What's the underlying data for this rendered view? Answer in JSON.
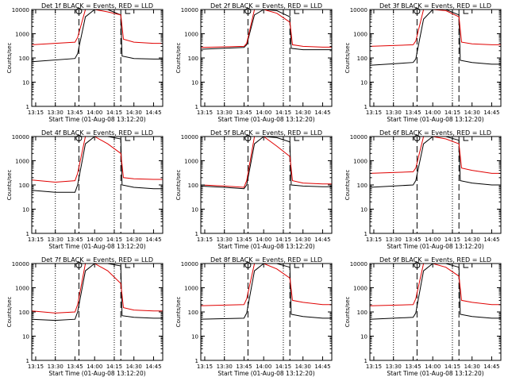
{
  "window": {
    "title": ""
  },
  "colors": {
    "events": "#000000",
    "lld": "#e00000",
    "axes": "#000000"
  },
  "chart_data": [
    {
      "type": "line",
      "title": "Det 1f BLACK = Events, RED = LLD",
      "xlabel": "Start Time (01-Aug-08 13:12:20)",
      "ylabel": "Counts/sec",
      "yscale": "log",
      "ylim": [
        1,
        10000
      ],
      "xlim": [
        "13:12",
        "14:52"
      ],
      "xticks": [
        "13:15",
        "13:30",
        "13:45",
        "14:00",
        "14:15",
        "14:30",
        "14:45"
      ],
      "yticks": [
        "1",
        "10",
        "100",
        "1000",
        "10000"
      ],
      "markers_dotted": [
        "13:30",
        "14:15"
      ],
      "markers_dashed": [
        "13:48",
        "14:20"
      ],
      "series": [
        {
          "name": "Events",
          "color": "#000000",
          "x": [
            "13:12",
            "13:45",
            "13:47",
            "13:53",
            "14:00",
            "14:10",
            "14:20",
            "14:21",
            "14:30",
            "14:45",
            "14:52"
          ],
          "values": [
            70,
            95,
            150,
            5000,
            10000,
            10000,
            6000,
            120,
            95,
            90,
            90
          ]
        },
        {
          "name": "LLD",
          "color": "#e00000",
          "x": [
            "13:12",
            "13:45",
            "13:47",
            "13:53",
            "14:00",
            "14:10",
            "14:20",
            "14:22",
            "14:30",
            "14:45",
            "14:52"
          ],
          "values": [
            350,
            450,
            700,
            10000,
            10000,
            8000,
            6000,
            600,
            450,
            400,
            400
          ]
        }
      ]
    },
    {
      "type": "line",
      "title": "Det 2f BLACK = Events, RED = LLD",
      "xlabel": "Start Time (01-Aug-08 13:12:20)",
      "ylabel": "Counts/sec",
      "yscale": "log",
      "ylim": [
        1,
        10000
      ],
      "xlim": [
        "13:12",
        "14:52"
      ],
      "xticks": [
        "13:15",
        "13:30",
        "13:45",
        "14:00",
        "14:15",
        "14:30",
        "14:45"
      ],
      "yticks": [
        "1",
        "10",
        "100",
        "1000",
        "10000"
      ],
      "markers_dotted": [
        "13:30",
        "14:15"
      ],
      "markers_dashed": [
        "13:48",
        "14:20"
      ],
      "series": [
        {
          "name": "Events",
          "color": "#000000",
          "x": [
            "13:12",
            "13:45",
            "13:47",
            "13:53",
            "14:00",
            "14:10",
            "14:20",
            "14:21",
            "14:30",
            "14:45",
            "14:52"
          ],
          "values": [
            230,
            270,
            350,
            6000,
            10000,
            9000,
            5000,
            250,
            220,
            220,
            220
          ]
        },
        {
          "name": "LLD",
          "color": "#e00000",
          "x": [
            "13:12",
            "13:45",
            "13:47",
            "13:53",
            "14:00",
            "14:10",
            "14:20",
            "14:22",
            "14:30",
            "14:45",
            "14:52"
          ],
          "values": [
            270,
            300,
            400,
            10000,
            10000,
            7000,
            3000,
            350,
            300,
            280,
            280
          ]
        }
      ]
    },
    {
      "type": "line",
      "title": "Det 3f BLACK = Events, RED = LLD",
      "xlabel": "Start Time (01-Aug-08 13:12:20)",
      "ylabel": "Counts/sec",
      "yscale": "log",
      "ylim": [
        1,
        10000
      ],
      "xlim": [
        "13:12",
        "14:52"
      ],
      "xticks": [
        "13:15",
        "13:30",
        "13:45",
        "14:00",
        "14:15",
        "14:30",
        "14:45"
      ],
      "yticks": [
        "1",
        "10",
        "100",
        "1000",
        "10000"
      ],
      "markers_dotted": [
        "13:30",
        "14:15"
      ],
      "markers_dashed": [
        "13:48",
        "14:20"
      ],
      "series": [
        {
          "name": "Events",
          "color": "#000000",
          "x": [
            "13:12",
            "13:45",
            "13:47",
            "13:53",
            "14:00",
            "14:10",
            "14:20",
            "14:21",
            "14:30",
            "14:45",
            "14:52"
          ],
          "values": [
            50,
            65,
            90,
            4000,
            10000,
            10000,
            6000,
            80,
            65,
            55,
            55
          ]
        },
        {
          "name": "LLD",
          "color": "#e00000",
          "x": [
            "13:12",
            "13:45",
            "13:47",
            "13:53",
            "14:00",
            "14:10",
            "14:20",
            "14:22",
            "14:30",
            "14:45",
            "14:52"
          ],
          "values": [
            300,
            350,
            500,
            10000,
            10000,
            9000,
            5000,
            450,
            380,
            350,
            350
          ]
        }
      ]
    },
    {
      "type": "line",
      "title": "Det 4f BLACK = Events, RED = LLD",
      "xlabel": "Start Time (01-Aug-08 13:12:20)",
      "ylabel": "Counts/sec",
      "yscale": "log",
      "ylim": [
        1,
        10000
      ],
      "xlim": [
        "13:12",
        "14:52"
      ],
      "xticks": [
        "13:15",
        "13:30",
        "13:45",
        "14:00",
        "14:15",
        "14:30",
        "14:45"
      ],
      "yticks": [
        "1",
        "10",
        "100",
        "1000",
        "10000"
      ],
      "markers_dotted": [
        "13:30",
        "14:15"
      ],
      "markers_dashed": [
        "13:48",
        "14:20"
      ],
      "series": [
        {
          "name": "Events",
          "color": "#000000",
          "x": [
            "13:12",
            "13:30",
            "13:45",
            "13:47",
            "13:53",
            "14:00",
            "14:10",
            "14:20",
            "14:21",
            "14:30",
            "14:45",
            "14:52"
          ],
          "values": [
            60,
            50,
            50,
            100,
            5000,
            10000,
            10000,
            8000,
            100,
            80,
            70,
            70
          ]
        },
        {
          "name": "LLD",
          "color": "#e00000",
          "x": [
            "13:12",
            "13:30",
            "13:45",
            "13:47",
            "13:53",
            "14:00",
            "14:10",
            "14:20",
            "14:22",
            "14:30",
            "14:45",
            "14:52"
          ],
          "values": [
            160,
            130,
            150,
            300,
            10000,
            10000,
            5000,
            2000,
            200,
            180,
            170,
            170
          ]
        }
      ]
    },
    {
      "type": "line",
      "title": "Det 5f BLACK = Events, RED = LLD",
      "xlabel": "Start Time (01-Aug-08 13:12:20)",
      "ylabel": "Counts/sec",
      "yscale": "log",
      "ylim": [
        1,
        10000
      ],
      "xlim": [
        "13:12",
        "14:52"
      ],
      "xticks": [
        "13:15",
        "13:30",
        "13:45",
        "14:00",
        "14:15",
        "14:30",
        "14:45"
      ],
      "yticks": [
        "1",
        "10",
        "100",
        "1000",
        "10000"
      ],
      "markers_dotted": [
        "13:30",
        "14:15"
      ],
      "markers_dashed": [
        "13:48",
        "14:20"
      ],
      "series": [
        {
          "name": "Events",
          "color": "#000000",
          "x": [
            "13:12",
            "13:30",
            "13:45",
            "13:47",
            "13:53",
            "14:00",
            "14:10",
            "14:20",
            "14:21",
            "14:30",
            "14:45",
            "14:52"
          ],
          "values": [
            90,
            80,
            70,
            100,
            5000,
            10000,
            9000,
            6000,
            100,
            90,
            85,
            85
          ]
        },
        {
          "name": "LLD",
          "color": "#e00000",
          "x": [
            "13:12",
            "13:30",
            "13:45",
            "13:47",
            "13:53",
            "14:00",
            "14:10",
            "14:20",
            "14:22",
            "14:30",
            "14:45",
            "14:52"
          ],
          "values": [
            100,
            90,
            80,
            150,
            10000,
            10000,
            4000,
            1500,
            150,
            120,
            110,
            110
          ]
        }
      ]
    },
    {
      "type": "line",
      "title": "Det 6f BLACK = Events, RED = LLD",
      "xlabel": "Start Time (01-Aug-08 13:12:20)",
      "ylabel": "Counts/sec",
      "yscale": "log",
      "ylim": [
        1,
        10000
      ],
      "xlim": [
        "13:12",
        "14:52"
      ],
      "xticks": [
        "13:15",
        "13:30",
        "13:45",
        "14:00",
        "14:15",
        "14:30",
        "14:45"
      ],
      "yticks": [
        "1",
        "10",
        "100",
        "1000",
        "10000"
      ],
      "markers_dotted": [
        "13:30",
        "14:15"
      ],
      "markers_dashed": [
        "13:48",
        "14:20"
      ],
      "series": [
        {
          "name": "Events",
          "color": "#000000",
          "x": [
            "13:12",
            "13:45",
            "13:47",
            "13:53",
            "14:00",
            "14:10",
            "14:20",
            "14:21",
            "14:30",
            "14:45",
            "14:52"
          ],
          "values": [
            80,
            100,
            150,
            5000,
            10000,
            10000,
            7000,
            150,
            120,
            100,
            100
          ]
        },
        {
          "name": "LLD",
          "color": "#e00000",
          "x": [
            "13:12",
            "13:45",
            "13:47",
            "13:53",
            "14:00",
            "14:10",
            "14:20",
            "14:22",
            "14:30",
            "14:45",
            "14:52"
          ],
          "values": [
            300,
            350,
            500,
            10000,
            10000,
            8000,
            5000,
            500,
            400,
            300,
            300
          ]
        }
      ]
    },
    {
      "type": "line",
      "title": "Det 7f BLACK = Events, RED = LLD",
      "xlabel": "Start Time (01-Aug-08 13:12:20)",
      "ylabel": "Counts/sec",
      "yscale": "log",
      "ylim": [
        1,
        10000
      ],
      "xlim": [
        "13:12",
        "14:52"
      ],
      "xticks": [
        "13:15",
        "13:30",
        "13:45",
        "14:00",
        "14:15",
        "14:30",
        "14:45"
      ],
      "yticks": [
        "1",
        "10",
        "100",
        "1000",
        "10000"
      ],
      "markers_dotted": [
        "13:30",
        "14:15"
      ],
      "markers_dashed": [
        "13:48",
        "14:20"
      ],
      "series": [
        {
          "name": "Events",
          "color": "#000000",
          "x": [
            "13:12",
            "13:30",
            "13:45",
            "13:47",
            "13:53",
            "14:00",
            "14:10",
            "14:20",
            "14:21",
            "14:30",
            "14:45",
            "14:52"
          ],
          "values": [
            50,
            45,
            50,
            100,
            5000,
            10000,
            10000,
            8000,
            70,
            60,
            55,
            55
          ]
        },
        {
          "name": "LLD",
          "color": "#e00000",
          "x": [
            "13:12",
            "13:30",
            "13:45",
            "13:47",
            "13:53",
            "14:00",
            "14:10",
            "14:20",
            "14:22",
            "14:30",
            "14:45",
            "14:52"
          ],
          "values": [
            110,
            90,
            100,
            200,
            10000,
            10000,
            5000,
            1500,
            150,
            120,
            110,
            110
          ]
        }
      ]
    },
    {
      "type": "line",
      "title": "Det 8f BLACK = Events, RED = LLD",
      "xlabel": "Start Time (01-Aug-08 13:12:20)",
      "ylabel": "Counts/sec",
      "yscale": "log",
      "ylim": [
        1,
        10000
      ],
      "xlim": [
        "13:12",
        "14:52"
      ],
      "xticks": [
        "13:15",
        "13:30",
        "13:45",
        "14:00",
        "14:15",
        "14:30",
        "14:45"
      ],
      "yticks": [
        "1",
        "10",
        "100",
        "1000",
        "10000"
      ],
      "markers_dotted": [
        "13:30",
        "14:15"
      ],
      "markers_dashed": [
        "13:48",
        "14:20"
      ],
      "series": [
        {
          "name": "Events",
          "color": "#000000",
          "x": [
            "13:12",
            "13:45",
            "13:47",
            "13:53",
            "14:00",
            "14:10",
            "14:20",
            "14:21",
            "14:30",
            "14:45",
            "14:52"
          ],
          "values": [
            50,
            55,
            90,
            5000,
            10000,
            10000,
            7000,
            80,
            65,
            55,
            55
          ]
        },
        {
          "name": "LLD",
          "color": "#e00000",
          "x": [
            "13:12",
            "13:45",
            "13:47",
            "13:53",
            "14:00",
            "14:10",
            "14:20",
            "14:22",
            "14:30",
            "14:45",
            "14:52"
          ],
          "values": [
            180,
            200,
            350,
            10000,
            10000,
            6000,
            2500,
            300,
            250,
            200,
            200
          ]
        }
      ]
    },
    {
      "type": "line",
      "title": "Det 9f BLACK = Events, RED = LLD",
      "xlabel": "Start Time (01-Aug-08 13:12:20)",
      "ylabel": "Counts/sec",
      "yscale": "log",
      "ylim": [
        1,
        10000
      ],
      "xlim": [
        "13:12",
        "14:52"
      ],
      "xticks": [
        "13:15",
        "13:30",
        "13:45",
        "14:00",
        "14:15",
        "14:30",
        "14:45"
      ],
      "yticks": [
        "1",
        "10",
        "100",
        "1000",
        "10000"
      ],
      "markers_dotted": [
        "13:30",
        "14:15"
      ],
      "markers_dashed": [
        "13:48",
        "14:20"
      ],
      "series": [
        {
          "name": "Events",
          "color": "#000000",
          "x": [
            "13:12",
            "13:45",
            "13:47",
            "13:53",
            "14:00",
            "14:10",
            "14:20",
            "14:21",
            "14:30",
            "14:45",
            "14:52"
          ],
          "values": [
            50,
            60,
            90,
            5000,
            10000,
            10000,
            7000,
            80,
            65,
            55,
            55
          ]
        },
        {
          "name": "LLD",
          "color": "#e00000",
          "x": [
            "13:12",
            "13:45",
            "13:47",
            "13:53",
            "14:00",
            "14:10",
            "14:20",
            "14:22",
            "14:30",
            "14:45",
            "14:52"
          ],
          "values": [
            180,
            200,
            350,
            10000,
            10000,
            7000,
            3000,
            300,
            250,
            200,
            200
          ]
        }
      ]
    }
  ]
}
